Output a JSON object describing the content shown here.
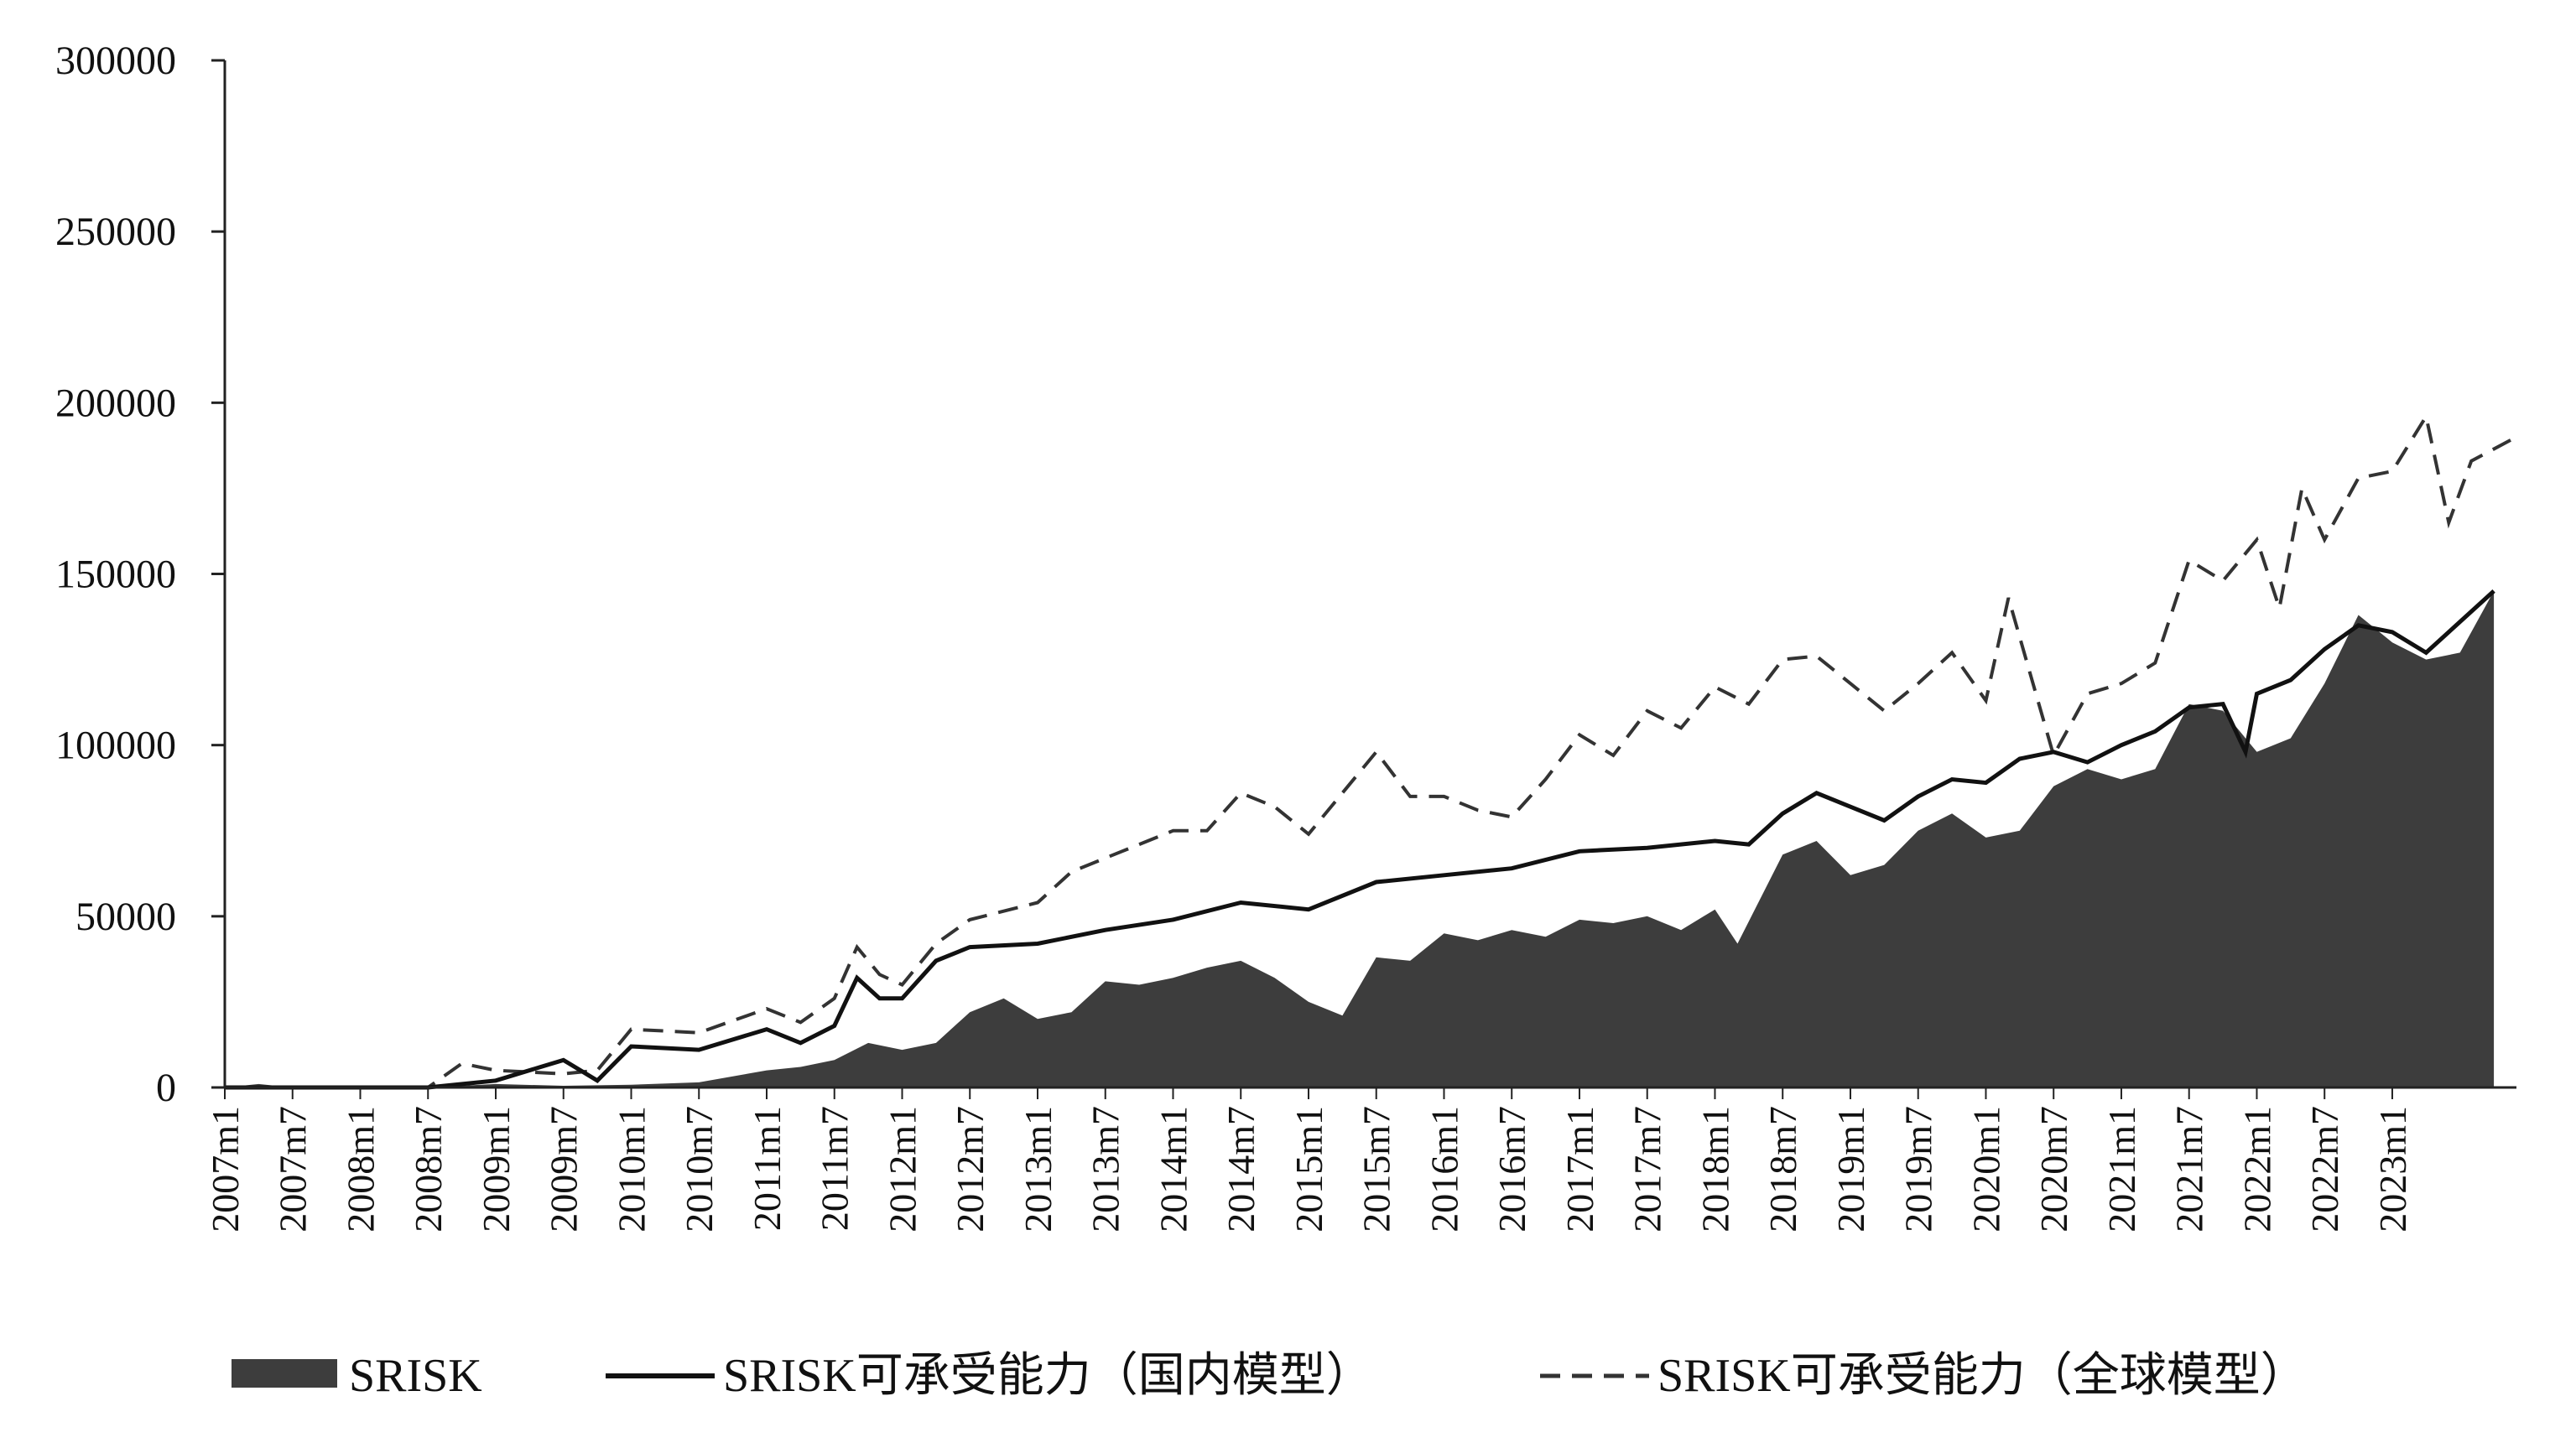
{
  "chart_data": {
    "type": "area",
    "title": "",
    "xlabel": "",
    "ylabel": "",
    "ylim": [
      0,
      300000
    ],
    "yticks": [
      0,
      50000,
      100000,
      150000,
      200000,
      250000,
      300000
    ],
    "x_start": "2007m1",
    "x_end": "2023m12",
    "x_tick_labels": [
      "2007m1",
      "2007m7",
      "2008m1",
      "2008m7",
      "2009m1",
      "2009m7",
      "2010m1",
      "2010m7",
      "2011m1",
      "2011m7",
      "2012m1",
      "2012m7",
      "2013m1",
      "2013m7",
      "2014m1",
      "2014m7",
      "2015m1",
      "2015m7",
      "2016m1",
      "2016m7",
      "2017m1",
      "2017m7",
      "2018m1",
      "2018m7",
      "2019m1",
      "2019m7",
      "2020m1",
      "2020m7",
      "2021m1",
      "2021m7",
      "2022m1",
      "2022m7",
      "2023m1"
    ],
    "grid": false,
    "legend": "bottom",
    "series": [
      {
        "name": "SRISK",
        "style": "filled-area",
        "color": "#3d3d3d",
        "points": [
          [
            "2007m1",
            0
          ],
          [
            "2007m4",
            1000
          ],
          [
            "2007m7",
            0
          ],
          [
            "2008m1",
            0
          ],
          [
            "2008m7",
            0
          ],
          [
            "2009m1",
            1000
          ],
          [
            "2009m7",
            500
          ],
          [
            "2010m1",
            800
          ],
          [
            "2010m7",
            1500
          ],
          [
            "2011m1",
            5000
          ],
          [
            "2011m4",
            6000
          ],
          [
            "2011m7",
            8000
          ],
          [
            "2011m10",
            13000
          ],
          [
            "2012m1",
            11000
          ],
          [
            "2012m4",
            13000
          ],
          [
            "2012m7",
            22000
          ],
          [
            "2012m10",
            26000
          ],
          [
            "2013m1",
            20000
          ],
          [
            "2013m4",
            22000
          ],
          [
            "2013m7",
            31000
          ],
          [
            "2013m10",
            30000
          ],
          [
            "2014m1",
            32000
          ],
          [
            "2014m4",
            35000
          ],
          [
            "2014m7",
            37000
          ],
          [
            "2014m10",
            32000
          ],
          [
            "2015m1",
            25000
          ],
          [
            "2015m4",
            21000
          ],
          [
            "2015m7",
            38000
          ],
          [
            "2015m10",
            37000
          ],
          [
            "2016m1",
            45000
          ],
          [
            "2016m4",
            43000
          ],
          [
            "2016m7",
            46000
          ],
          [
            "2016m10",
            44000
          ],
          [
            "2017m1",
            49000
          ],
          [
            "2017m4",
            48000
          ],
          [
            "2017m7",
            50000
          ],
          [
            "2017m10",
            46000
          ],
          [
            "2018m1",
            52000
          ],
          [
            "2018m3",
            42000
          ],
          [
            "2018m7",
            68000
          ],
          [
            "2018m10",
            72000
          ],
          [
            "2019m1",
            62000
          ],
          [
            "2019m4",
            65000
          ],
          [
            "2019m7",
            75000
          ],
          [
            "2019m10",
            80000
          ],
          [
            "2020m1",
            73000
          ],
          [
            "2020m4",
            75000
          ],
          [
            "2020m7",
            88000
          ],
          [
            "2020m10",
            93000
          ],
          [
            "2021m1",
            90000
          ],
          [
            "2021m4",
            93000
          ],
          [
            "2021m7",
            112000
          ],
          [
            "2021m10",
            110000
          ],
          [
            "2022m1",
            98000
          ],
          [
            "2022m4",
            102000
          ],
          [
            "2022m7",
            118000
          ],
          [
            "2022m10",
            138000
          ],
          [
            "2023m1",
            130000
          ],
          [
            "2023m4",
            125000
          ],
          [
            "2023m7",
            127000
          ],
          [
            "2023m10",
            145000
          ]
        ]
      },
      {
        "name": "SRISK可承受能力（国内模型）",
        "style": "solid-line",
        "color": "#111111",
        "points": [
          [
            "2007m1",
            0
          ],
          [
            "2008m7",
            0
          ],
          [
            "2009m1",
            2000
          ],
          [
            "2009m7",
            8000
          ],
          [
            "2009m10",
            2000
          ],
          [
            "2010m1",
            12000
          ],
          [
            "2010m7",
            11000
          ],
          [
            "2011m1",
            17000
          ],
          [
            "2011m4",
            13000
          ],
          [
            "2011m7",
            18000
          ],
          [
            "2011m9",
            32000
          ],
          [
            "2011m11",
            26000
          ],
          [
            "2012m1",
            26000
          ],
          [
            "2012m4",
            37000
          ],
          [
            "2012m7",
            41000
          ],
          [
            "2013m1",
            42000
          ],
          [
            "2013m7",
            46000
          ],
          [
            "2014m1",
            49000
          ],
          [
            "2014m7",
            54000
          ],
          [
            "2015m1",
            52000
          ],
          [
            "2015m7",
            60000
          ],
          [
            "2016m1",
            62000
          ],
          [
            "2016m7",
            64000
          ],
          [
            "2017m1",
            69000
          ],
          [
            "2017m7",
            70000
          ],
          [
            "2018m1",
            72000
          ],
          [
            "2018m4",
            71000
          ],
          [
            "2018m7",
            80000
          ],
          [
            "2018m10",
            86000
          ],
          [
            "2019m1",
            82000
          ],
          [
            "2019m4",
            78000
          ],
          [
            "2019m7",
            85000
          ],
          [
            "2019m10",
            90000
          ],
          [
            "2020m1",
            89000
          ],
          [
            "2020m4",
            96000
          ],
          [
            "2020m7",
            98000
          ],
          [
            "2020m10",
            95000
          ],
          [
            "2021m1",
            100000
          ],
          [
            "2021m4",
            104000
          ],
          [
            "2021m7",
            111000
          ],
          [
            "2021m10",
            112000
          ],
          [
            "2021m12",
            98000
          ],
          [
            "2022m1",
            115000
          ],
          [
            "2022m4",
            119000
          ],
          [
            "2022m7",
            128000
          ],
          [
            "2022m10",
            135000
          ],
          [
            "2023m1",
            133000
          ],
          [
            "2023m4",
            127000
          ],
          [
            "2023m10",
            145000
          ]
        ]
      },
      {
        "name": "SRISK可承受能力（全球模型）",
        "style": "dashed-line",
        "color": "#333333",
        "points": [
          [
            "2007m1",
            0
          ],
          [
            "2008m7",
            0
          ],
          [
            "2008m10",
            7000
          ],
          [
            "2009m1",
            5000
          ],
          [
            "2009m7",
            4000
          ],
          [
            "2009m10",
            5000
          ],
          [
            "2010m1",
            17000
          ],
          [
            "2010m7",
            16000
          ],
          [
            "2011m1",
            23000
          ],
          [
            "2011m4",
            19000
          ],
          [
            "2011m7",
            26000
          ],
          [
            "2011m9",
            41000
          ],
          [
            "2011m11",
            33000
          ],
          [
            "2012m1",
            30000
          ],
          [
            "2012m4",
            42000
          ],
          [
            "2012m7",
            49000
          ],
          [
            "2013m1",
            54000
          ],
          [
            "2013m4",
            63000
          ],
          [
            "2013m7",
            67000
          ],
          [
            "2014m1",
            75000
          ],
          [
            "2014m4",
            75000
          ],
          [
            "2014m7",
            86000
          ],
          [
            "2014m10",
            82000
          ],
          [
            "2015m1",
            74000
          ],
          [
            "2015m7",
            98000
          ],
          [
            "2015m10",
            85000
          ],
          [
            "2016m1",
            85000
          ],
          [
            "2016m4",
            81000
          ],
          [
            "2016m7",
            79000
          ],
          [
            "2016m10",
            90000
          ],
          [
            "2017m1",
            103000
          ],
          [
            "2017m4",
            97000
          ],
          [
            "2017m7",
            110000
          ],
          [
            "2017m10",
            105000
          ],
          [
            "2018m1",
            117000
          ],
          [
            "2018m4",
            112000
          ],
          [
            "2018m7",
            125000
          ],
          [
            "2018m10",
            126000
          ],
          [
            "2019m1",
            118000
          ],
          [
            "2019m4",
            110000
          ],
          [
            "2019m7",
            118000
          ],
          [
            "2019m10",
            127000
          ],
          [
            "2020m1",
            113000
          ],
          [
            "2020m3",
            143000
          ],
          [
            "2020m5",
            120000
          ],
          [
            "2020m7",
            97000
          ],
          [
            "2020m10",
            115000
          ],
          [
            "2021m1",
            118000
          ],
          [
            "2021m4",
            124000
          ],
          [
            "2021m7",
            154000
          ],
          [
            "2021m10",
            148000
          ],
          [
            "2022m1",
            160000
          ],
          [
            "2022m3",
            140000
          ],
          [
            "2022m5",
            175000
          ],
          [
            "2022m7",
            160000
          ],
          [
            "2022m10",
            178000
          ],
          [
            "2023m1",
            180000
          ],
          [
            "2023m4",
            196000
          ],
          [
            "2023m6",
            165000
          ],
          [
            "2023m8",
            183000
          ],
          [
            "2023m12",
            190000
          ]
        ]
      }
    ]
  }
}
